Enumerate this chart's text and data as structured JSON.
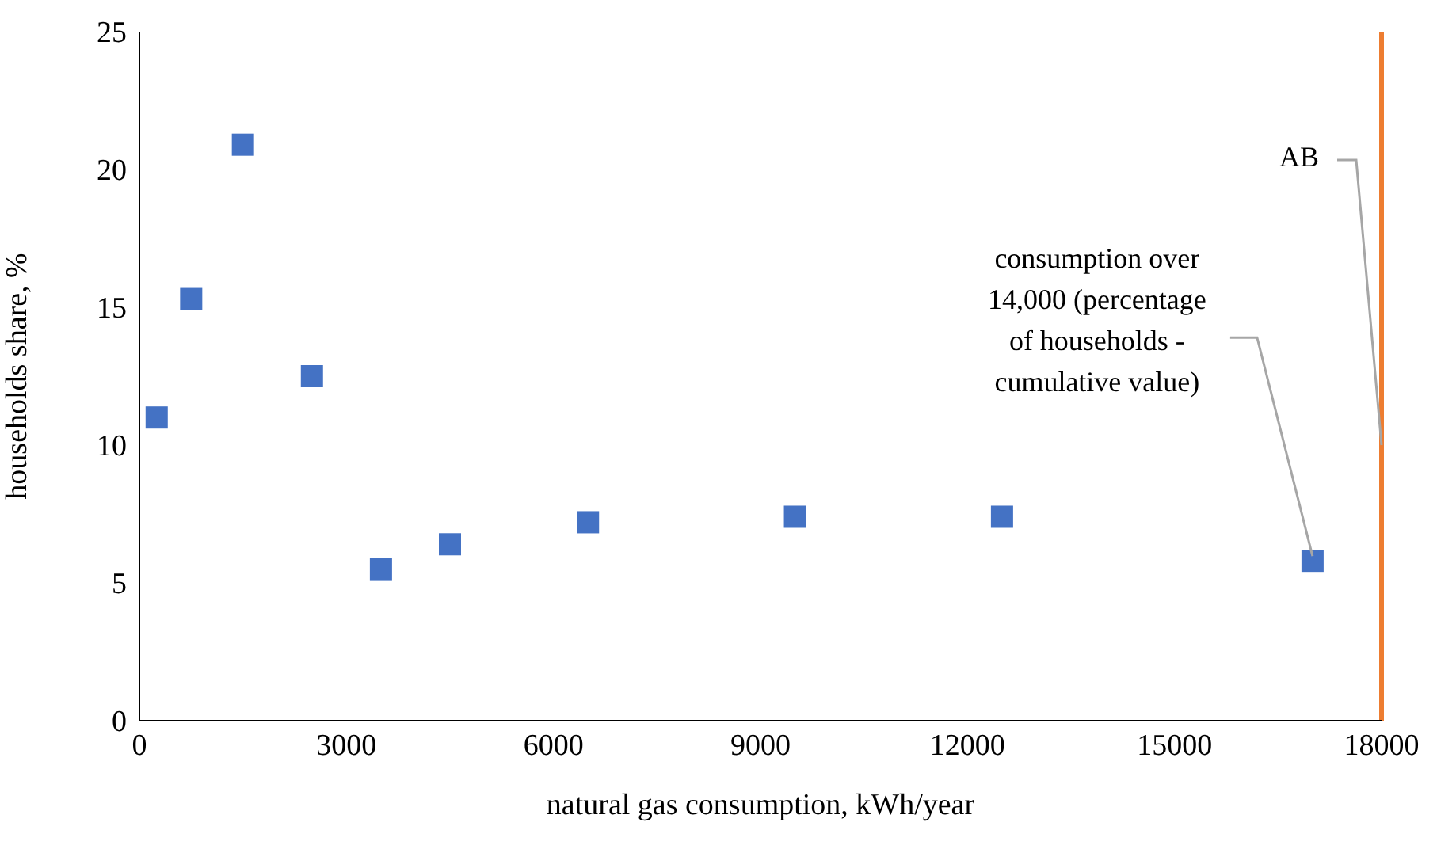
{
  "chart_data": {
    "type": "scatter",
    "xlabel": "natural gas consumption, kWh/year",
    "ylabel": "households share, %",
    "x": [
      250,
      750,
      1500,
      2500,
      3500,
      4500,
      6500,
      9500,
      12500,
      17000
    ],
    "series": [
      {
        "color": "#4472c4",
        "values": [
          11.0,
          15.3,
          20.9,
          12.5,
          5.5,
          6.4,
          7.2,
          7.4,
          7.4,
          5.8
        ]
      }
    ],
    "xlim": [
      0,
      18000
    ],
    "xticks": [
      0,
      3000,
      6000,
      9000,
      12000,
      15000,
      18000
    ],
    "ylim": [
      0,
      25
    ],
    "yticks": [
      0,
      5,
      10,
      15,
      20,
      25
    ],
    "ref_lines": [
      {
        "axis": "x",
        "value": 18000,
        "label": "AB",
        "color": "#ed7d31"
      }
    ],
    "annotations": [
      {
        "text": "consumption over 14,000 (percentage of households - cumulative value)",
        "x": 17000,
        "y": 5.8
      }
    ],
    "marker": "square",
    "grid": false,
    "legend": false
  }
}
